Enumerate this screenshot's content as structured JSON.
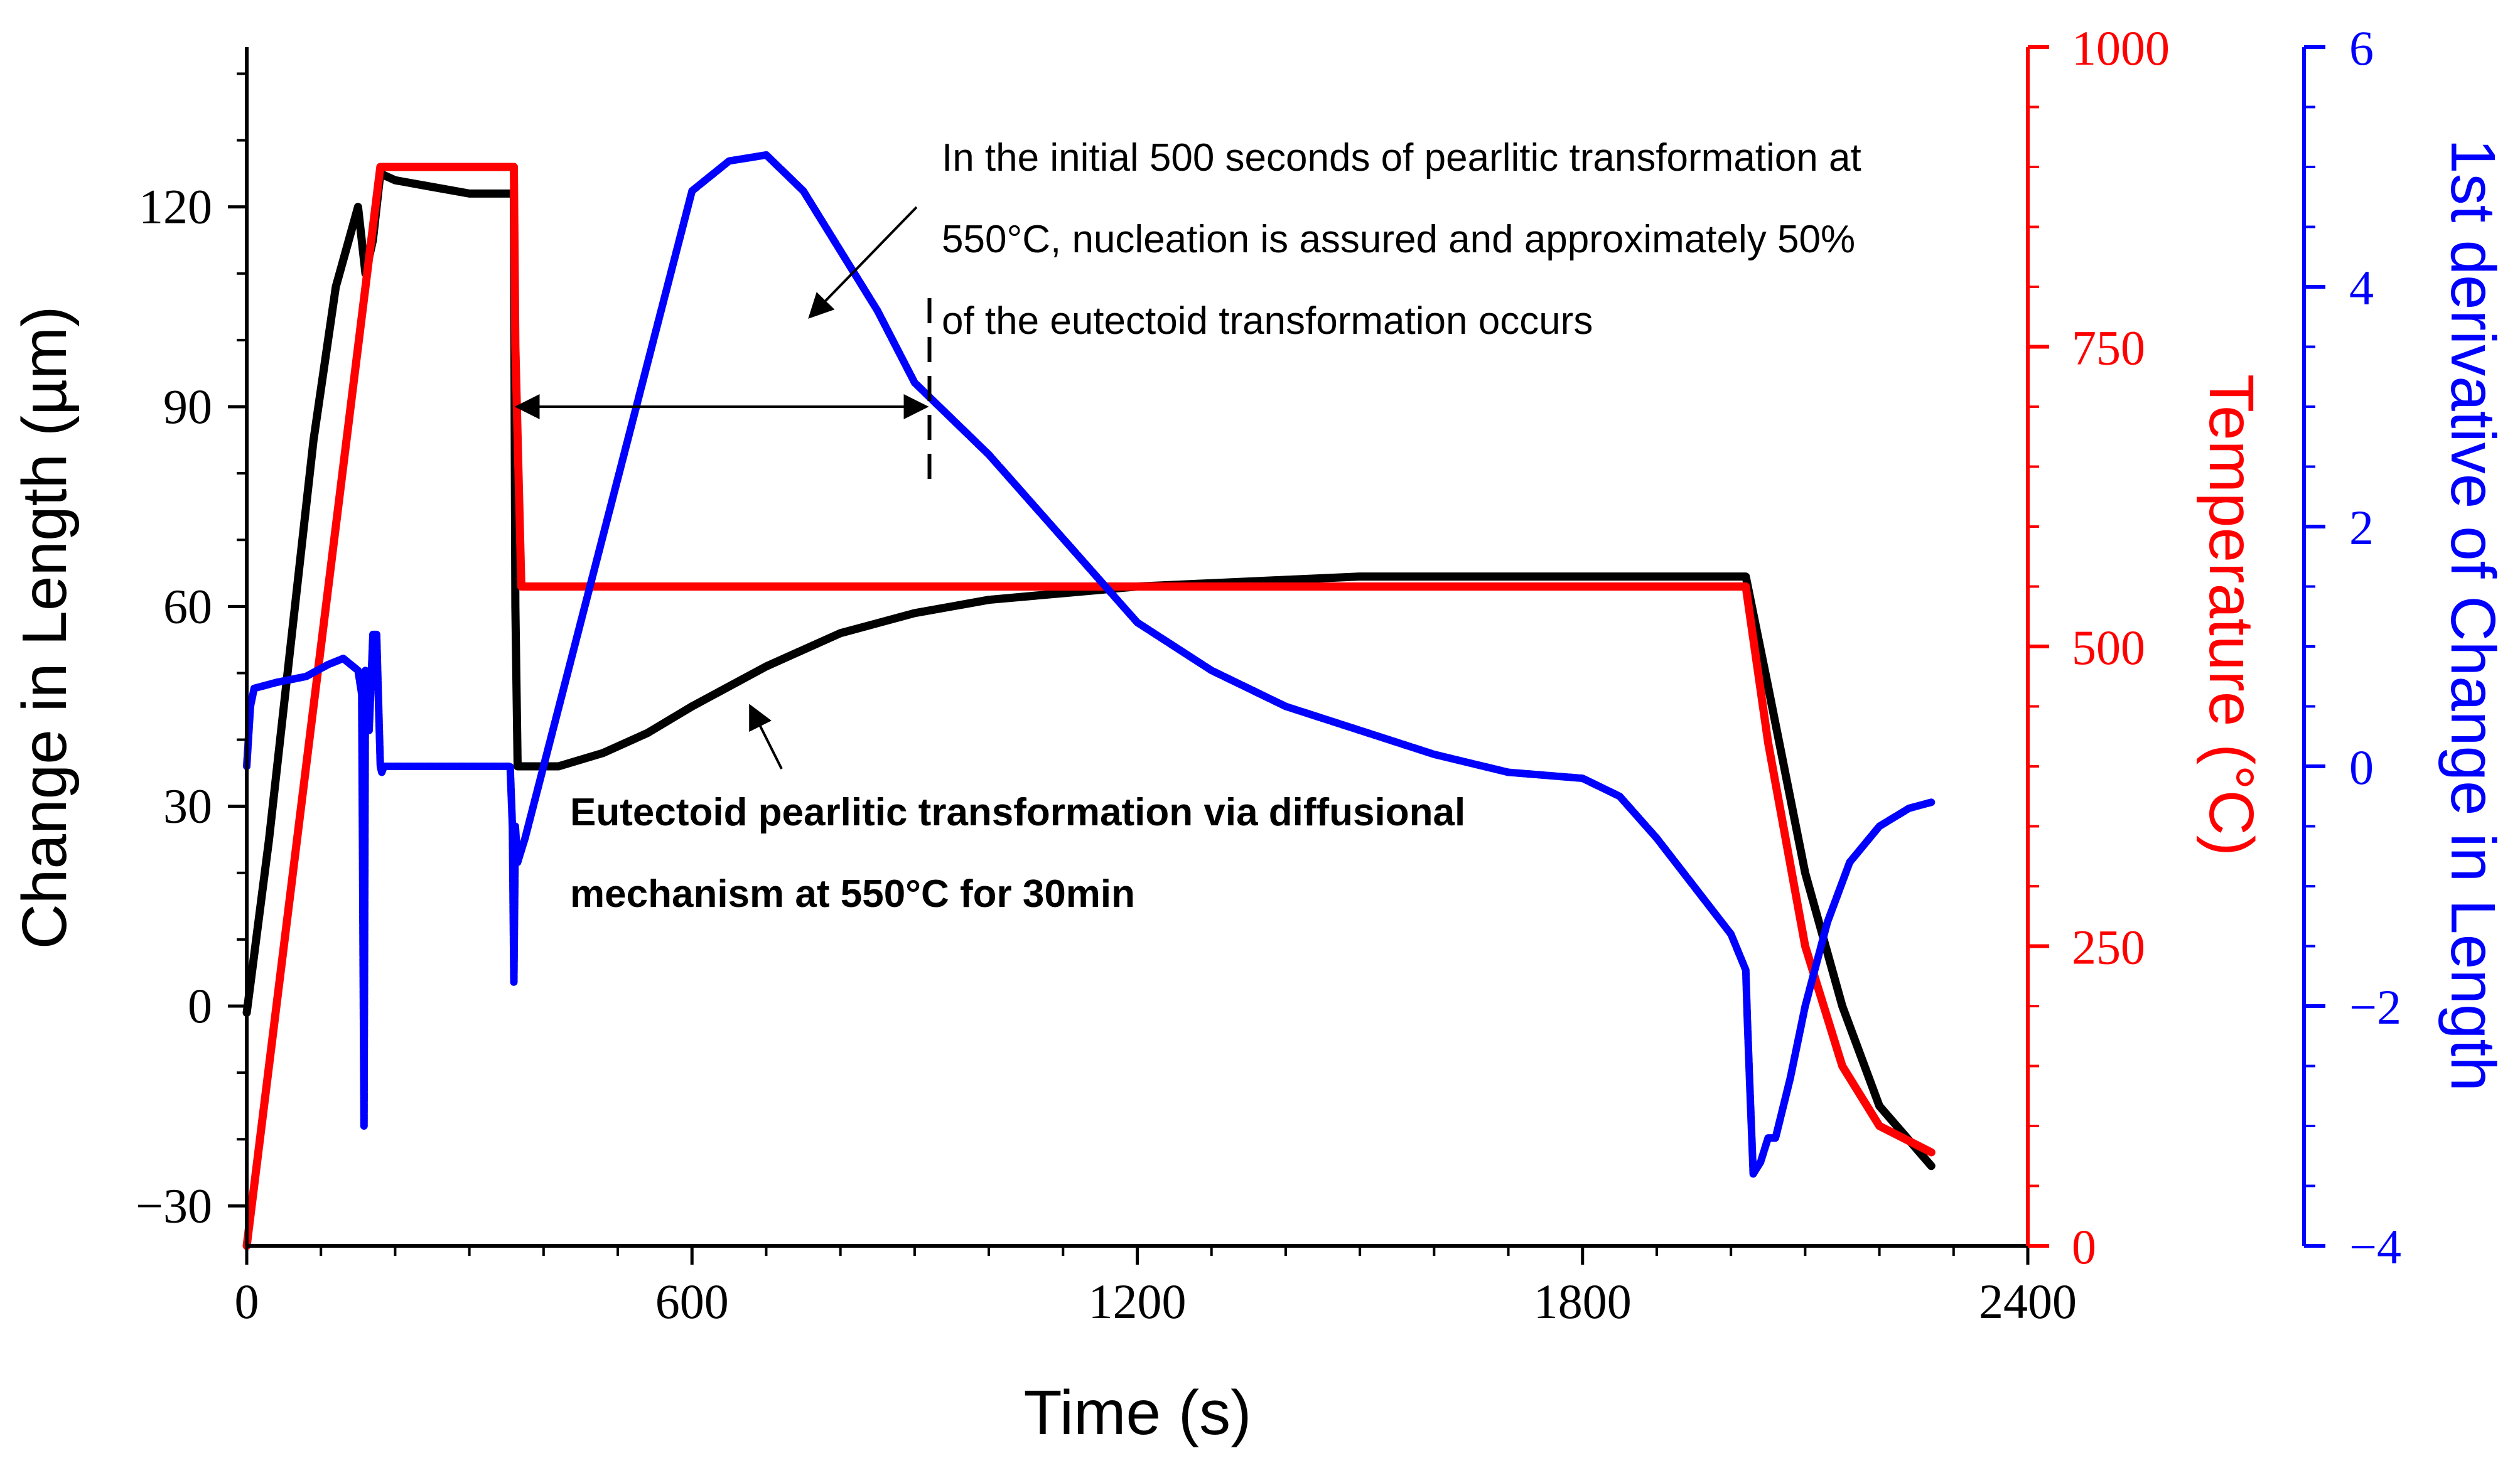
{
  "chart_data": {
    "type": "line",
    "xlabel": "Time (s)",
    "xlim": [
      0,
      2400
    ],
    "x_ticks": [
      "0",
      "600",
      "1200",
      "1800",
      "2400"
    ],
    "x_tick_values": [
      0,
      600,
      1200,
      1800,
      2400
    ],
    "y_left": {
      "label": "Change in Length (µm)",
      "lim": [
        -36,
        144
      ],
      "ticks": [
        "−30",
        "0",
        "30",
        "60",
        "90",
        "120"
      ],
      "tick_values": [
        -30,
        0,
        30,
        60,
        90,
        120
      ],
      "color": "#000000"
    },
    "y_right1": {
      "label": "Temperature (°C)",
      "lim": [
        0,
        1000
      ],
      "ticks": [
        "0",
        "250",
        "500",
        "750",
        "1000"
      ],
      "tick_values": [
        0,
        250,
        500,
        750,
        1000
      ],
      "color": "#ff0000"
    },
    "y_right2": {
      "label": "1st derivative of Change in Length",
      "lim": [
        -4,
        6
      ],
      "ticks": [
        "−4",
        "−2",
        "0",
        "2",
        "4",
        "6"
      ],
      "tick_values": [
        -4,
        -2,
        0,
        2,
        4,
        6
      ],
      "color": "#0000ff"
    },
    "series": [
      {
        "name": "Change in Length",
        "axis": "y_left",
        "color": "#000000",
        "x": [
          0,
          30,
          60,
          90,
          120,
          150,
          160,
          170,
          180,
          200,
          250,
          300,
          360,
          362,
          365,
          380,
          420,
          480,
          540,
          600,
          700,
          800,
          900,
          1000,
          1100,
          1200,
          1300,
          1400,
          1500,
          1600,
          1700,
          1800,
          1900,
          2020,
          2050,
          2100,
          2150,
          2200,
          2270
        ],
        "values": [
          -1,
          25,
          55,
          85,
          108,
          120,
          110,
          115,
          125,
          124,
          123,
          122,
          122,
          60,
          36,
          36,
          36,
          38,
          41,
          45,
          51,
          56,
          59,
          61,
          62,
          63,
          63.5,
          64,
          64.5,
          64.5,
          64.5,
          64.5,
          64.5,
          64.5,
          48,
          20,
          0,
          -15,
          -24
        ]
      },
      {
        "name": "Temperature",
        "axis": "y_right1",
        "color": "#ff0000",
        "x": [
          0,
          180,
          360,
          362,
          370,
          2020,
          2050,
          2100,
          2150,
          2200,
          2270
        ],
        "values": [
          0,
          900,
          900,
          750,
          550,
          550,
          420,
          250,
          150,
          100,
          78
        ]
      },
      {
        "name": "1st derivative of Change in Length",
        "axis": "y_right2",
        "color": "#0000ff",
        "x": [
          0,
          5,
          10,
          40,
          80,
          110,
          130,
          150,
          155,
          158,
          160,
          162,
          165,
          170,
          175,
          180,
          182,
          185,
          200,
          250,
          300,
          355,
          358,
          360,
          362,
          365,
          375,
          400,
          450,
          500,
          550,
          600,
          620,
          650,
          700,
          750,
          800,
          850,
          900,
          950,
          1000,
          1100,
          1200,
          1300,
          1400,
          1500,
          1600,
          1700,
          1800,
          1850,
          1900,
          1950,
          2000,
          2020,
          2022,
          2025,
          2030,
          2040,
          2050,
          2060,
          2080,
          2100,
          2130,
          2160,
          2200,
          2240,
          2270
        ],
        "values": [
          0,
          0.5,
          0.65,
          0.7,
          0.75,
          0.85,
          0.9,
          0.8,
          0.6,
          -3,
          0.8,
          0.3,
          0.3,
          1.1,
          1.1,
          0,
          -0.05,
          0,
          0,
          0,
          0,
          0,
          -0.5,
          -1.8,
          -0.5,
          -0.8,
          -0.6,
          0,
          1.2,
          2.4,
          3.6,
          4.8,
          4.9,
          5.05,
          5.1,
          4.8,
          4.3,
          3.8,
          3.2,
          2.9,
          2.6,
          1.9,
          1.2,
          0.8,
          0.5,
          0.3,
          0.1,
          -0.05,
          -0.1,
          -0.25,
          -0.6,
          -1.0,
          -1.4,
          -1.7,
          -2.1,
          -2.6,
          -3.4,
          -3.3,
          -3.1,
          -3.1,
          -2.6,
          -2.0,
          -1.3,
          -0.8,
          -0.5,
          -0.35,
          -0.3
        ]
      }
    ],
    "annotations": {
      "top": {
        "lines": [
          "In the initial 500 seconds of pearlitic transformation at",
          "550°C, nucleation is assured and approximately 50%",
          "of the eutectoid transformation occurs"
        ]
      },
      "bottom": {
        "lines": [
          "Eutectoid pearlitic transformation via diffusional",
          "mechanism at 550°C for 30min"
        ]
      },
      "span_arrow": {
        "x_start": 360,
        "x_end": 920,
        "y_value": 90
      }
    }
  }
}
